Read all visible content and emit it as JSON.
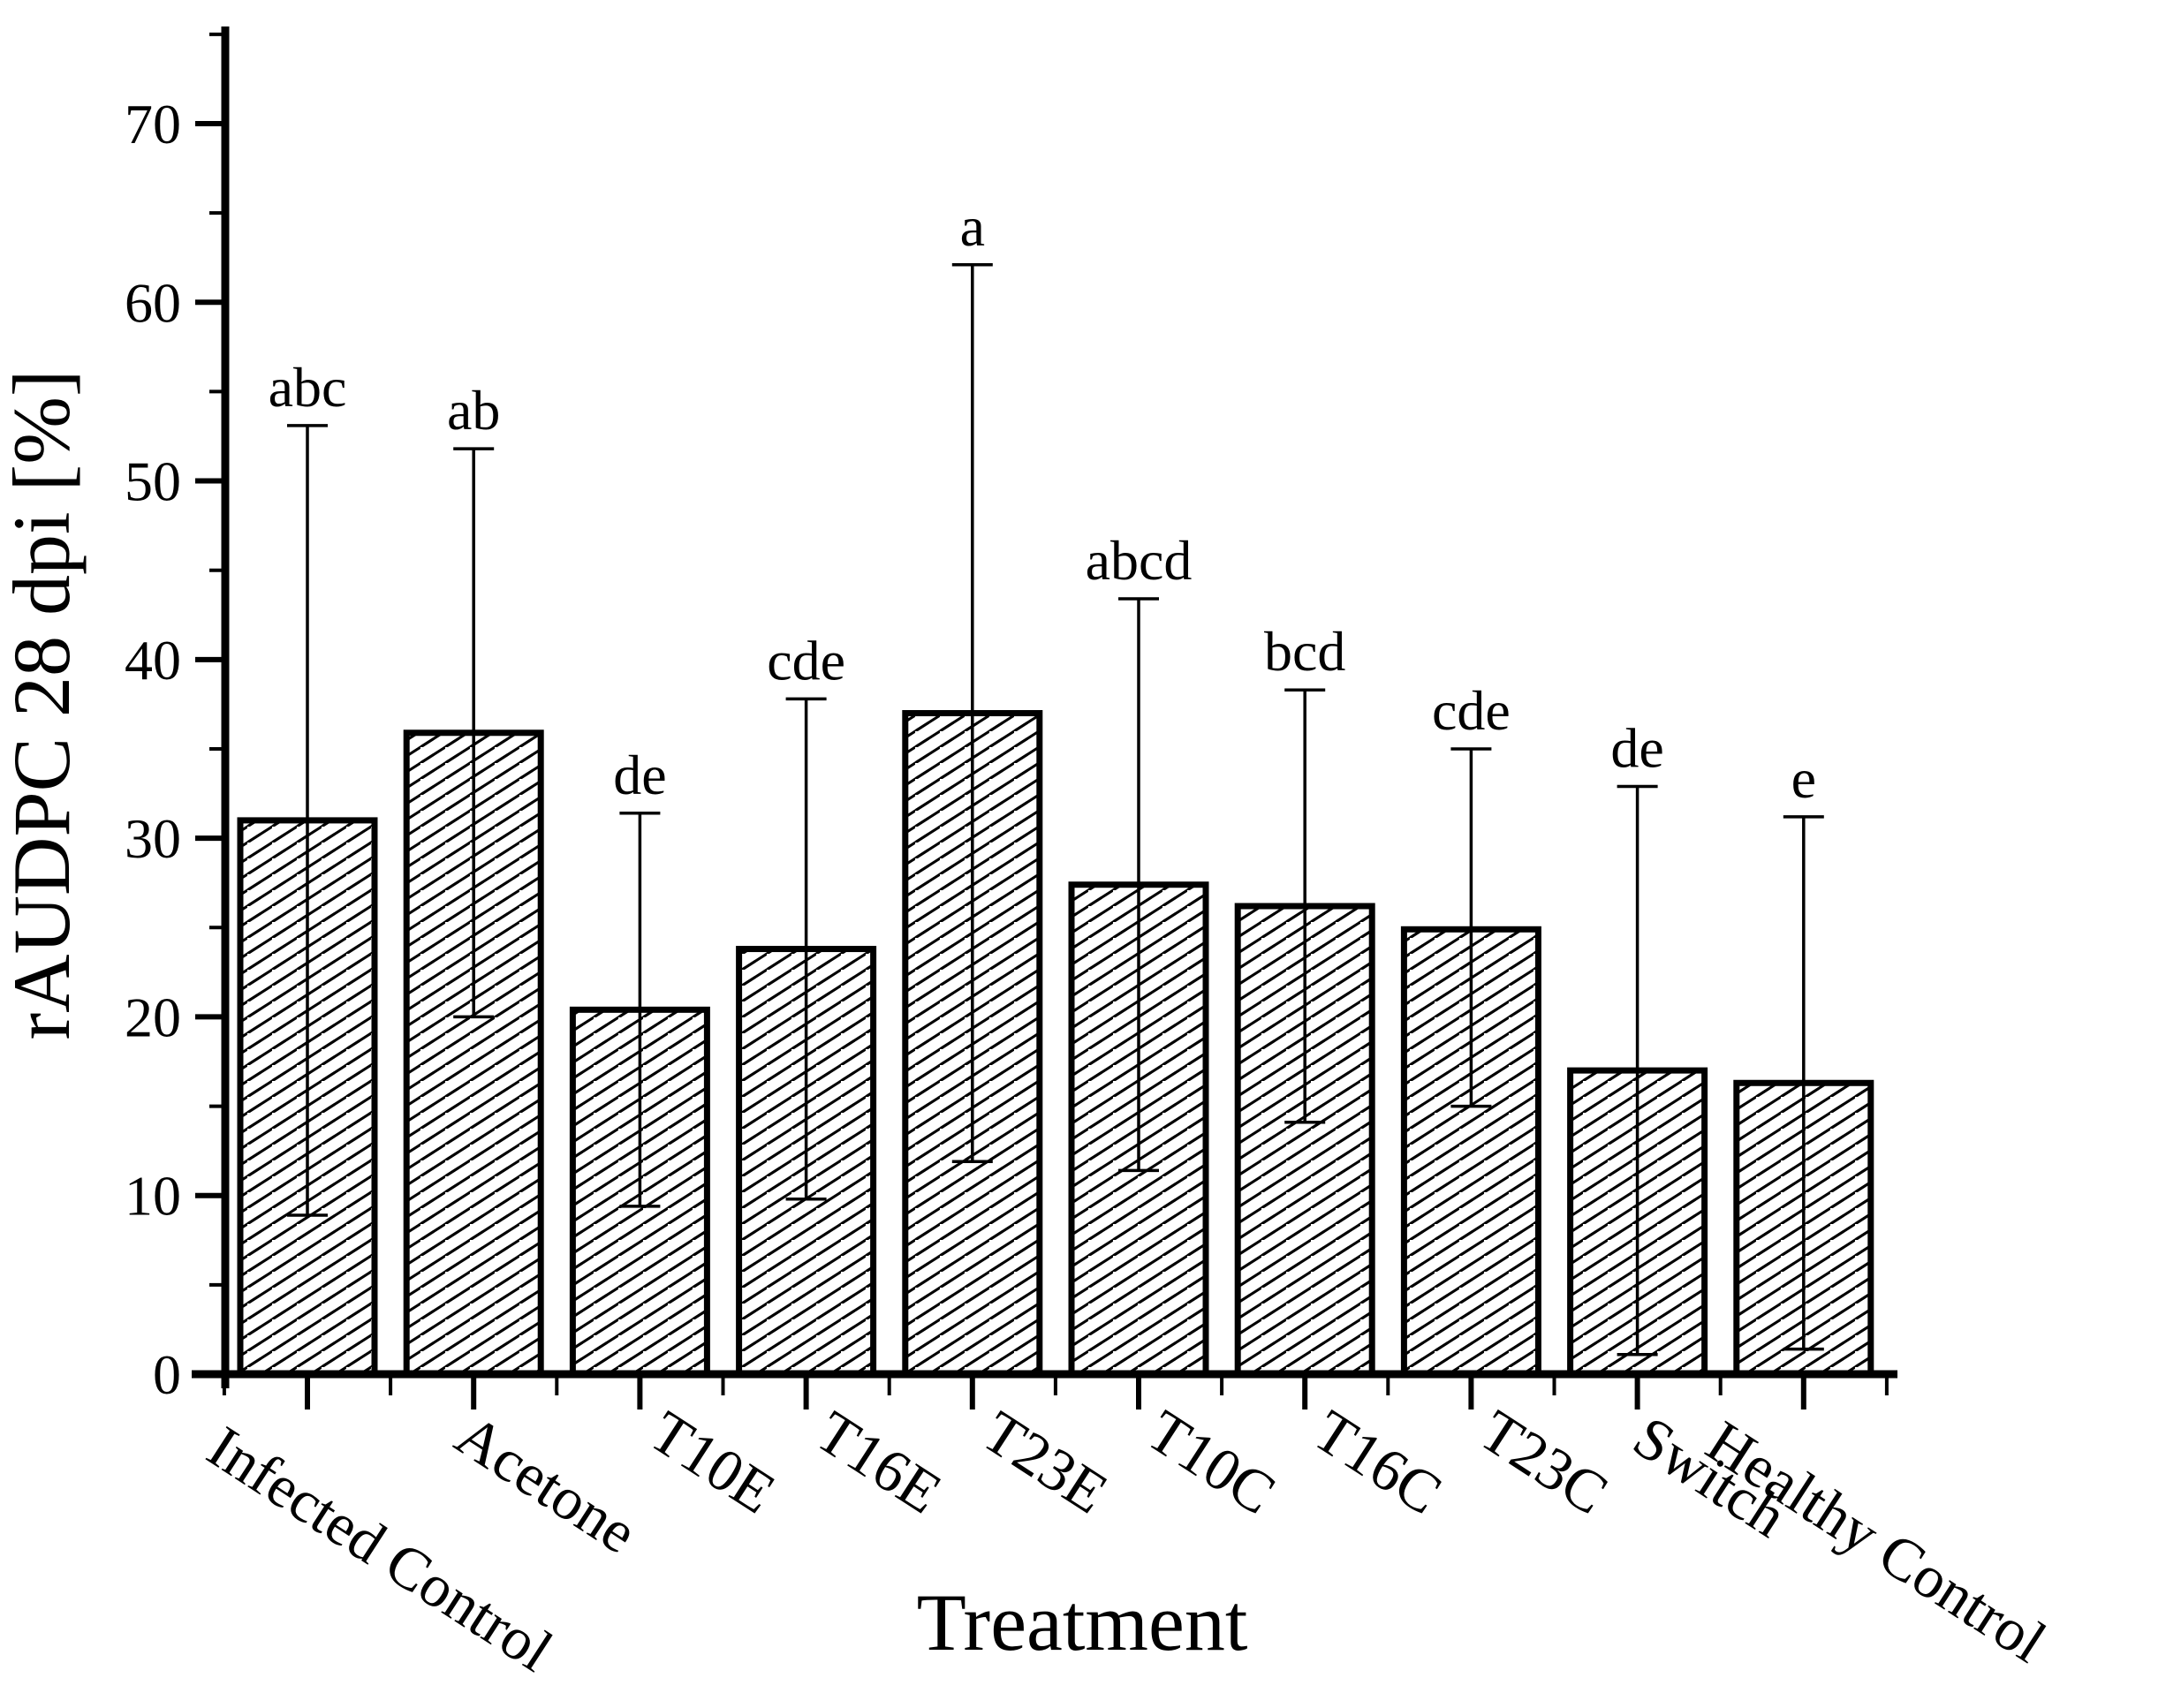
{
  "figure": {
    "background_color": "#ffffff",
    "ink_color": "#000000"
  },
  "chart_data": {
    "type": "bar",
    "title": "",
    "xlabel": "Treatment",
    "ylabel": "rAUDPC 28 dpi [%]",
    "ylim": [
      0,
      75
    ],
    "ymajor_ticks": [
      0,
      10,
      20,
      30,
      40,
      50,
      60,
      70
    ],
    "yminor_ticks": [
      5,
      15,
      25,
      35,
      45,
      55,
      65,
      75
    ],
    "grid": false,
    "legend": "none",
    "bar_style": {
      "fill": "diagonal-hatch",
      "stroke": "#000000",
      "background": "#ffffff"
    },
    "categories": [
      "Infected Control",
      "Acetone",
      "T10E",
      "T16E",
      "T23E",
      "T10C",
      "T16C",
      "T23C",
      "Switch",
      "Healthy Control"
    ],
    "values": [
      31.0,
      35.9,
      20.4,
      23.8,
      37.0,
      27.4,
      26.2,
      24.9,
      17.0,
      16.3
    ],
    "error_bar_upper": [
      53.1,
      51.8,
      31.4,
      37.8,
      62.1,
      43.4,
      38.3,
      35.0,
      32.9,
      31.2
    ],
    "error_bar_lower": [
      8.9,
      20.0,
      9.4,
      9.8,
      11.9,
      11.4,
      14.1,
      15.0,
      1.1,
      1.4
    ],
    "significance_letters": [
      "abc",
      "ab",
      "de",
      "cde",
      "a",
      "abcd",
      "bcd",
      "cde",
      "de",
      "e"
    ]
  }
}
